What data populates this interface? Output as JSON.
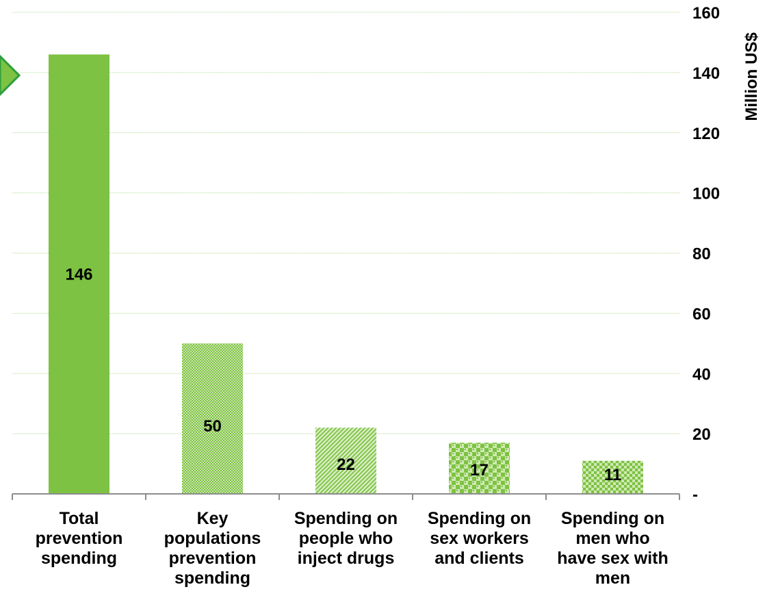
{
  "chart_data": {
    "type": "bar",
    "categories": [
      [
        "Total",
        "prevention",
        "spending"
      ],
      [
        "Key",
        "populations",
        "prevention",
        "spending"
      ],
      [
        "Spending on",
        "people who",
        "inject drugs"
      ],
      [
        "Spending on",
        "sex workers",
        "and clients"
      ],
      [
        "Spending on",
        "men who",
        "have sex with",
        "men"
      ]
    ],
    "values": [
      146,
      50,
      22,
      17,
      11
    ],
    "value_labels": [
      "146",
      "50",
      "22",
      "17",
      "11"
    ],
    "bar_patterns": [
      "solid",
      "dots",
      "diagonal",
      "checker",
      "fine-checker"
    ],
    "ylabel": "Million US$",
    "ylim": [
      0,
      160
    ],
    "yticks": [
      0,
      20,
      40,
      60,
      80,
      100,
      120,
      140,
      160
    ],
    "ytick_labels": [
      "-",
      "20",
      "40",
      "60",
      "80",
      "100",
      "120",
      "140",
      "160"
    ],
    "y_axis_side": "right",
    "grid": true,
    "colors": {
      "bar_fill": "#7dc242",
      "bar_light": "#c9e6ad",
      "grid": "#b6dc96",
      "axis": "#8c8c8c",
      "marker_fill": "#7dc242",
      "marker_stroke": "#2e9e3c"
    }
  }
}
